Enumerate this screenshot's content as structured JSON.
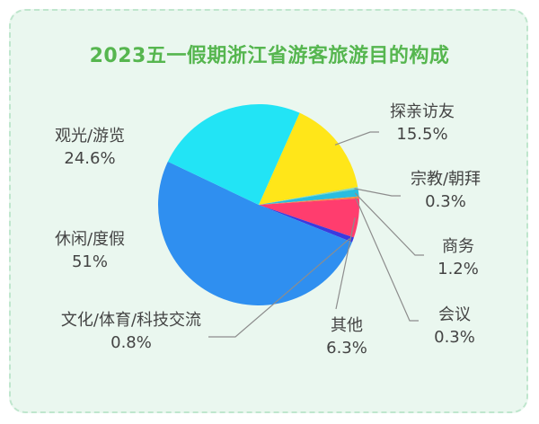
{
  "chart_data": {
    "type": "pie",
    "title": "2023五一假期浙江省游客旅游目的构成",
    "slices": [
      {
        "label": "探亲访友",
        "value": 15.5,
        "value_text": "15.5%",
        "color": "#ffe619"
      },
      {
        "label": "宗教/朝拜",
        "value": 0.3,
        "value_text": "0.3%",
        "color": "#7fd8c4"
      },
      {
        "label": "商务",
        "value": 1.2,
        "value_text": "1.2%",
        "color": "#29bde0"
      },
      {
        "label": "会议",
        "value": 0.3,
        "value_text": "0.3%",
        "color": "#ff8a3d"
      },
      {
        "label": "其他",
        "value": 6.3,
        "value_text": "6.3%",
        "color": "#ff3d6e"
      },
      {
        "label": "文化/体育/科技交流",
        "value": 0.8,
        "value_text": "0.8%",
        "color": "#3a3adf"
      },
      {
        "label": "休闲/度假",
        "value": 51,
        "value_text": "51%",
        "color": "#2f8ff0"
      },
      {
        "label": "观光/游览",
        "value": 24.6,
        "value_text": "24.6%",
        "color": "#22e4f5"
      }
    ]
  }
}
